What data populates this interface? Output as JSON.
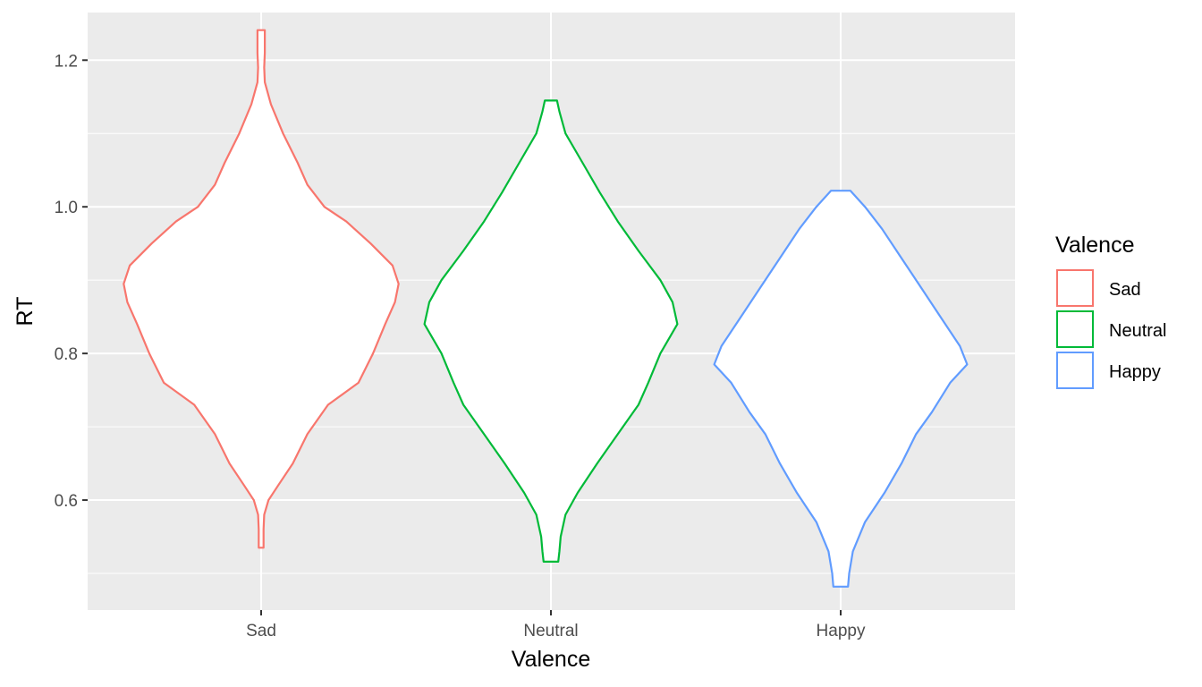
{
  "chart_data": {
    "type": "violin",
    "xlabel": "Valence",
    "ylabel": "RT",
    "categories": [
      "Sad",
      "Neutral",
      "Happy"
    ],
    "ylim": [
      0.45,
      1.265
    ],
    "y_ticks": [
      {
        "value": 0.6,
        "label": "0.6"
      },
      {
        "value": 0.8,
        "label": "0.8"
      },
      {
        "value": 1.0,
        "label": "1.0"
      },
      {
        "value": 1.2,
        "label": "1.2"
      }
    ],
    "y_minor_ticks": [
      0.5,
      0.7,
      0.9,
      1.1
    ],
    "grid": true,
    "legend": {
      "title": "Valence",
      "position": "right",
      "items": [
        {
          "label": "Sad",
          "color": "#F8766D"
        },
        {
          "label": "Neutral",
          "color": "#00BA38"
        },
        {
          "label": "Happy",
          "color": "#619CFF"
        }
      ]
    },
    "series": [
      {
        "name": "Sad",
        "color": "#F8766D",
        "ymin": 0.535,
        "ymax": 1.241,
        "profile": [
          [
            0.535,
            0.02
          ],
          [
            0.56,
            0.02
          ],
          [
            0.58,
            0.025
          ],
          [
            0.6,
            0.06
          ],
          [
            0.62,
            0.14
          ],
          [
            0.65,
            0.26
          ],
          [
            0.69,
            0.38
          ],
          [
            0.73,
            0.55
          ],
          [
            0.76,
            0.8
          ],
          [
            0.8,
            0.92
          ],
          [
            0.84,
            1.02
          ],
          [
            0.87,
            1.1
          ],
          [
            0.895,
            1.13
          ],
          [
            0.92,
            1.08
          ],
          [
            0.95,
            0.9
          ],
          [
            0.98,
            0.7
          ],
          [
            1.0,
            0.52
          ],
          [
            1.03,
            0.38
          ],
          [
            1.06,
            0.3
          ],
          [
            1.1,
            0.18
          ],
          [
            1.14,
            0.08
          ],
          [
            1.17,
            0.03
          ],
          [
            1.19,
            0.025
          ],
          [
            1.21,
            0.03
          ],
          [
            1.241,
            0.03
          ]
        ]
      },
      {
        "name": "Neutral",
        "color": "#00BA38",
        "ymin": 0.516,
        "ymax": 1.145,
        "profile": [
          [
            0.516,
            0.06
          ],
          [
            0.53,
            0.07
          ],
          [
            0.55,
            0.08
          ],
          [
            0.58,
            0.12
          ],
          [
            0.61,
            0.22
          ],
          [
            0.65,
            0.38
          ],
          [
            0.69,
            0.55
          ],
          [
            0.73,
            0.72
          ],
          [
            0.76,
            0.8
          ],
          [
            0.8,
            0.9
          ],
          [
            0.84,
            1.04
          ],
          [
            0.87,
            1.0
          ],
          [
            0.9,
            0.9
          ],
          [
            0.94,
            0.72
          ],
          [
            0.98,
            0.55
          ],
          [
            1.02,
            0.4
          ],
          [
            1.06,
            0.26
          ],
          [
            1.1,
            0.12
          ],
          [
            1.13,
            0.07
          ],
          [
            1.145,
            0.05
          ]
        ]
      },
      {
        "name": "Happy",
        "color": "#619CFF",
        "ymin": 0.482,
        "ymax": 1.022,
        "profile": [
          [
            0.482,
            0.06
          ],
          [
            0.5,
            0.07
          ],
          [
            0.53,
            0.1
          ],
          [
            0.57,
            0.2
          ],
          [
            0.61,
            0.36
          ],
          [
            0.65,
            0.5
          ],
          [
            0.69,
            0.62
          ],
          [
            0.72,
            0.75
          ],
          [
            0.76,
            0.9
          ],
          [
            0.785,
            1.04
          ],
          [
            0.81,
            0.98
          ],
          [
            0.85,
            0.82
          ],
          [
            0.89,
            0.66
          ],
          [
            0.93,
            0.5
          ],
          [
            0.97,
            0.34
          ],
          [
            1.0,
            0.2
          ],
          [
            1.022,
            0.08
          ]
        ]
      }
    ]
  }
}
